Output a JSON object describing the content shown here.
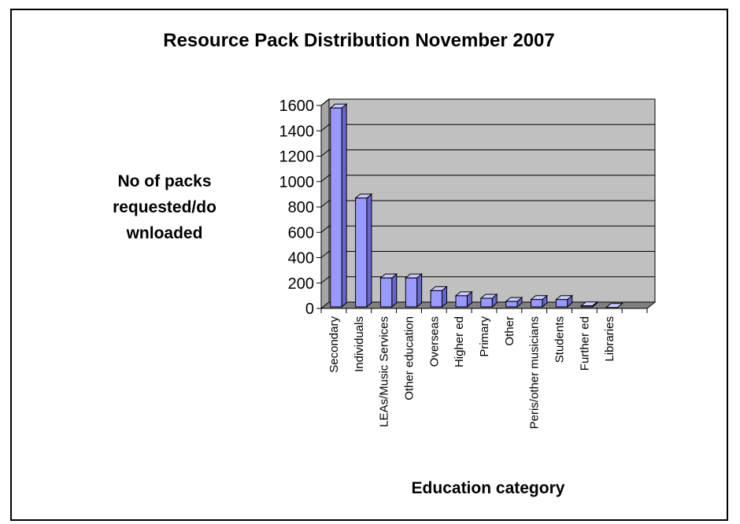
{
  "chart_data": {
    "type": "bar",
    "title": "Resource Pack Distribution November 2007",
    "ylabel": "No of packs requested/do wnloaded",
    "ylabel_lines": [
      "No of packs",
      "requested/do",
      "wnloaded"
    ],
    "xlabel": "Education category",
    "categories": [
      "Secondary",
      "Individuals",
      "LEAs/Music Services",
      "Other education",
      "Overseas",
      "Higher ed",
      "Primary",
      "Other",
      "Peris/other musicians",
      "Students",
      "Further ed",
      "Libraries"
    ],
    "values": [
      1580,
      870,
      240,
      240,
      140,
      100,
      80,
      55,
      70,
      70,
      20,
      8
    ],
    "ylim": [
      0,
      1600
    ],
    "yticks": [
      0,
      200,
      400,
      600,
      800,
      1000,
      1200,
      1400,
      1600
    ],
    "grid": true,
    "style": "3d-column",
    "colors": {
      "bar_front": "#9999ff",
      "bar_top": "#ccccff",
      "bar_side": "#6666cc",
      "plot_wall": "#c0c0c0",
      "floor": "#808080"
    }
  }
}
